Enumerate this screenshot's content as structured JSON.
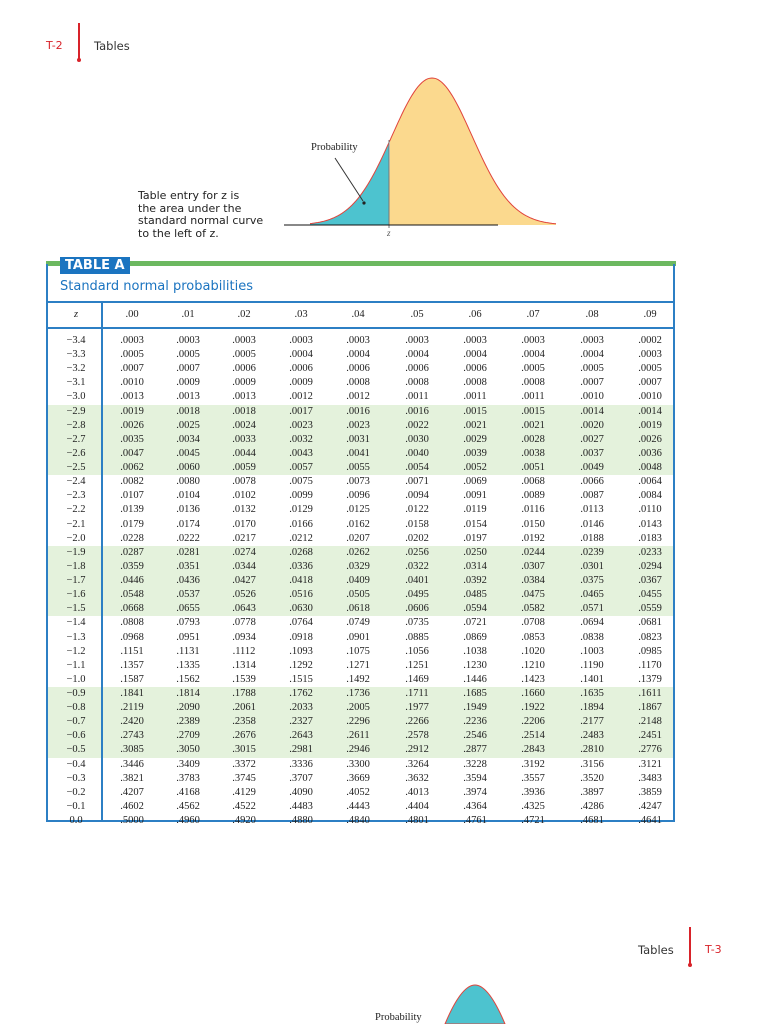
{
  "header": {
    "page_number": "T-2",
    "running_head": "Tables"
  },
  "figure": {
    "arrow_label": "Probability",
    "axis_label": "z",
    "caption": [
      "Table entry for z is",
      "the area under the",
      "standard normal curve",
      "to the left of z."
    ],
    "colors": {
      "left_area": "#4dc3cf",
      "right_area": "#fbd98e",
      "curve": "#e0443c"
    }
  },
  "table": {
    "label": "TABLE A",
    "title": "Standard normal probabilities",
    "columns": [
      "z",
      ".00",
      ".01",
      ".02",
      ".03",
      ".04",
      ".05",
      ".06",
      ".07",
      ".08",
      ".09"
    ],
    "shaded_rows": [
      "−2.9",
      "−2.8",
      "−2.7",
      "−2.6",
      "−2.5",
      "−1.9",
      "−1.8",
      "−1.7",
      "−1.6",
      "−1.5",
      "−0.9",
      "−0.8",
      "−0.7",
      "−0.6",
      "−0.5"
    ],
    "rows": [
      [
        "−3.4",
        ".0003",
        ".0003",
        ".0003",
        ".0003",
        ".0003",
        ".0003",
        ".0003",
        ".0003",
        ".0003",
        ".0002"
      ],
      [
        "−3.3",
        ".0005",
        ".0005",
        ".0005",
        ".0004",
        ".0004",
        ".0004",
        ".0004",
        ".0004",
        ".0004",
        ".0003"
      ],
      [
        "−3.2",
        ".0007",
        ".0007",
        ".0006",
        ".0006",
        ".0006",
        ".0006",
        ".0006",
        ".0005",
        ".0005",
        ".0005"
      ],
      [
        "−3.1",
        ".0010",
        ".0009",
        ".0009",
        ".0009",
        ".0008",
        ".0008",
        ".0008",
        ".0008",
        ".0007",
        ".0007"
      ],
      [
        "−3.0",
        ".0013",
        ".0013",
        ".0013",
        ".0012",
        ".0012",
        ".0011",
        ".0011",
        ".0011",
        ".0010",
        ".0010"
      ],
      [
        "−2.9",
        ".0019",
        ".0018",
        ".0018",
        ".0017",
        ".0016",
        ".0016",
        ".0015",
        ".0015",
        ".0014",
        ".0014"
      ],
      [
        "−2.8",
        ".0026",
        ".0025",
        ".0024",
        ".0023",
        ".0023",
        ".0022",
        ".0021",
        ".0021",
        ".0020",
        ".0019"
      ],
      [
        "−2.7",
        ".0035",
        ".0034",
        ".0033",
        ".0032",
        ".0031",
        ".0030",
        ".0029",
        ".0028",
        ".0027",
        ".0026"
      ],
      [
        "−2.6",
        ".0047",
        ".0045",
        ".0044",
        ".0043",
        ".0041",
        ".0040",
        ".0039",
        ".0038",
        ".0037",
        ".0036"
      ],
      [
        "−2.5",
        ".0062",
        ".0060",
        ".0059",
        ".0057",
        ".0055",
        ".0054",
        ".0052",
        ".0051",
        ".0049",
        ".0048"
      ],
      [
        "−2.4",
        ".0082",
        ".0080",
        ".0078",
        ".0075",
        ".0073",
        ".0071",
        ".0069",
        ".0068",
        ".0066",
        ".0064"
      ],
      [
        "−2.3",
        ".0107",
        ".0104",
        ".0102",
        ".0099",
        ".0096",
        ".0094",
        ".0091",
        ".0089",
        ".0087",
        ".0084"
      ],
      [
        "−2.2",
        ".0139",
        ".0136",
        ".0132",
        ".0129",
        ".0125",
        ".0122",
        ".0119",
        ".0116",
        ".0113",
        ".0110"
      ],
      [
        "−2.1",
        ".0179",
        ".0174",
        ".0170",
        ".0166",
        ".0162",
        ".0158",
        ".0154",
        ".0150",
        ".0146",
        ".0143"
      ],
      [
        "−2.0",
        ".0228",
        ".0222",
        ".0217",
        ".0212",
        ".0207",
        ".0202",
        ".0197",
        ".0192",
        ".0188",
        ".0183"
      ],
      [
        "−1.9",
        ".0287",
        ".0281",
        ".0274",
        ".0268",
        ".0262",
        ".0256",
        ".0250",
        ".0244",
        ".0239",
        ".0233"
      ],
      [
        "−1.8",
        ".0359",
        ".0351",
        ".0344",
        ".0336",
        ".0329",
        ".0322",
        ".0314",
        ".0307",
        ".0301",
        ".0294"
      ],
      [
        "−1.7",
        ".0446",
        ".0436",
        ".0427",
        ".0418",
        ".0409",
        ".0401",
        ".0392",
        ".0384",
        ".0375",
        ".0367"
      ],
      [
        "−1.6",
        ".0548",
        ".0537",
        ".0526",
        ".0516",
        ".0505",
        ".0495",
        ".0485",
        ".0475",
        ".0465",
        ".0455"
      ],
      [
        "−1.5",
        ".0668",
        ".0655",
        ".0643",
        ".0630",
        ".0618",
        ".0606",
        ".0594",
        ".0582",
        ".0571",
        ".0559"
      ],
      [
        "−1.4",
        ".0808",
        ".0793",
        ".0778",
        ".0764",
        ".0749",
        ".0735",
        ".0721",
        ".0708",
        ".0694",
        ".0681"
      ],
      [
        "−1.3",
        ".0968",
        ".0951",
        ".0934",
        ".0918",
        ".0901",
        ".0885",
        ".0869",
        ".0853",
        ".0838",
        ".0823"
      ],
      [
        "−1.2",
        ".1151",
        ".1131",
        ".1112",
        ".1093",
        ".1075",
        ".1056",
        ".1038",
        ".1020",
        ".1003",
        ".0985"
      ],
      [
        "−1.1",
        ".1357",
        ".1335",
        ".1314",
        ".1292",
        ".1271",
        ".1251",
        ".1230",
        ".1210",
        ".1190",
        ".1170"
      ],
      [
        "−1.0",
        ".1587",
        ".1562",
        ".1539",
        ".1515",
        ".1492",
        ".1469",
        ".1446",
        ".1423",
        ".1401",
        ".1379"
      ],
      [
        "−0.9",
        ".1841",
        ".1814",
        ".1788",
        ".1762",
        ".1736",
        ".1711",
        ".1685",
        ".1660",
        ".1635",
        ".1611"
      ],
      [
        "−0.8",
        ".2119",
        ".2090",
        ".2061",
        ".2033",
        ".2005",
        ".1977",
        ".1949",
        ".1922",
        ".1894",
        ".1867"
      ],
      [
        "−0.7",
        ".2420",
        ".2389",
        ".2358",
        ".2327",
        ".2296",
        ".2266",
        ".2236",
        ".2206",
        ".2177",
        ".2148"
      ],
      [
        "−0.6",
        ".2743",
        ".2709",
        ".2676",
        ".2643",
        ".2611",
        ".2578",
        ".2546",
        ".2514",
        ".2483",
        ".2451"
      ],
      [
        "−0.5",
        ".3085",
        ".3050",
        ".3015",
        ".2981",
        ".2946",
        ".2912",
        ".2877",
        ".2843",
        ".2810",
        ".2776"
      ],
      [
        "−0.4",
        ".3446",
        ".3409",
        ".3372",
        ".3336",
        ".3300",
        ".3264",
        ".3228",
        ".3192",
        ".3156",
        ".3121"
      ],
      [
        "−0.3",
        ".3821",
        ".3783",
        ".3745",
        ".3707",
        ".3669",
        ".3632",
        ".3594",
        ".3557",
        ".3520",
        ".3483"
      ],
      [
        "−0.2",
        ".4207",
        ".4168",
        ".4129",
        ".4090",
        ".4052",
        ".4013",
        ".3974",
        ".3936",
        ".3897",
        ".3859"
      ],
      [
        "−0.1",
        ".4602",
        ".4562",
        ".4522",
        ".4483",
        ".4443",
        ".4404",
        ".4364",
        ".4325",
        ".4286",
        ".4247"
      ],
      [
        "0.0",
        ".5000",
        ".4960",
        ".4920",
        ".4880",
        ".4840",
        ".4801",
        ".4761",
        ".4721",
        ".4681",
        ".4641"
      ]
    ]
  },
  "next_page": {
    "running_head": "Tables",
    "page_number": "T-3",
    "figure_label": "Probability"
  }
}
